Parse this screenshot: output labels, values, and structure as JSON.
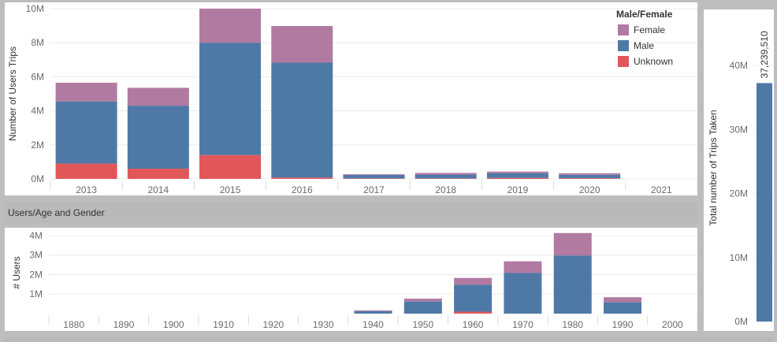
{
  "colors": {
    "female": "#b07aa1",
    "male": "#4e79a7",
    "unknown": "#e15759"
  },
  "section": {
    "title": "Users/Age and Gender"
  },
  "chart_data": [
    {
      "type": "bar",
      "stacked": true,
      "categories": [
        "2013",
        "2014",
        "2015",
        "2016",
        "2017",
        "2018",
        "2019",
        "2020",
        "2021"
      ],
      "series": [
        {
          "name": "Unknown",
          "values": [
            900000,
            600000,
            1400000,
            80000,
            30000,
            30000,
            60000,
            40000,
            0
          ]
        },
        {
          "name": "Male",
          "values": [
            3650000,
            3700000,
            6600000,
            6750000,
            200000,
            220000,
            270000,
            200000,
            0
          ]
        },
        {
          "name": "Female",
          "values": [
            1100000,
            1050000,
            2000000,
            2150000,
            40000,
            100000,
            100000,
            90000,
            0
          ]
        }
      ],
      "ylabel": "Number of Users Trips",
      "ylim": [
        0,
        10000000
      ],
      "yticks": [
        0,
        2000000,
        4000000,
        6000000,
        8000000,
        10000000
      ],
      "ytick_labels": [
        "0M",
        "2M",
        "4M",
        "6M",
        "8M",
        "10M"
      ],
      "legend": {
        "title": "Male/Female",
        "items": [
          "Female",
          "Male",
          "Unknown"
        ],
        "placement": "top-right"
      }
    },
    {
      "type": "bar",
      "stacked": true,
      "categories": [
        "1880",
        "1890",
        "1900",
        "1910",
        "1920",
        "1930",
        "1940",
        "1950",
        "1960",
        "1970",
        "1980",
        "1990",
        "2000"
      ],
      "series": [
        {
          "name": "Unknown",
          "values": [
            0,
            0,
            0,
            0,
            0,
            0,
            0,
            0,
            100000,
            0,
            0,
            0,
            0
          ]
        },
        {
          "name": "Male",
          "values": [
            0,
            0,
            0,
            0,
            0,
            0,
            130000,
            620000,
            1380000,
            2080000,
            2980000,
            580000,
            0
          ]
        },
        {
          "name": "Female",
          "values": [
            0,
            0,
            0,
            0,
            0,
            0,
            40000,
            150000,
            350000,
            600000,
            1150000,
            260000,
            0
          ]
        }
      ],
      "ylabel": "# Users",
      "ylim": [
        0,
        4200000
      ],
      "yticks": [
        1000000,
        2000000,
        3000000,
        4000000
      ],
      "ytick_labels": [
        "1M",
        "2M",
        "3M",
        "4M"
      ]
    },
    {
      "type": "bar",
      "categories": [
        ""
      ],
      "values": [
        37239510
      ],
      "value_label": "37,239,510",
      "ylabel": "Total number of Trips Taken",
      "ylim": [
        0,
        48000000
      ],
      "yticks": [
        0,
        10000000,
        20000000,
        30000000,
        40000000
      ],
      "ytick_labels": [
        "0M",
        "10M",
        "20M",
        "30M",
        "40M"
      ]
    }
  ]
}
